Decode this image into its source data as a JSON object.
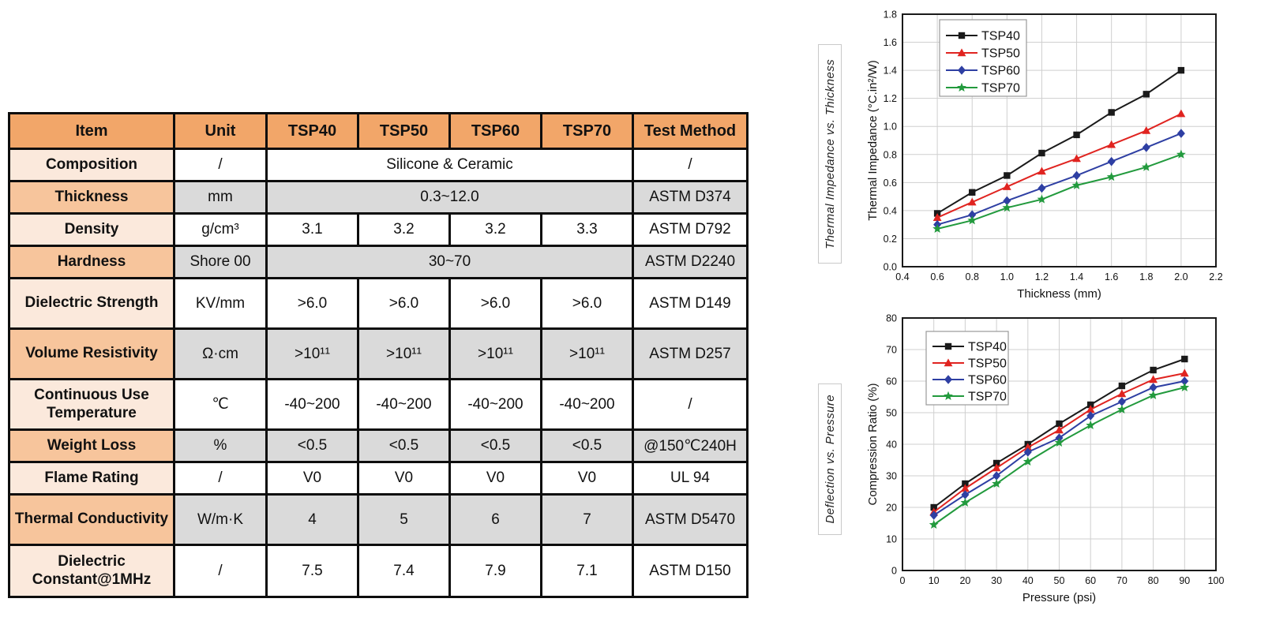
{
  "table": {
    "columns": [
      "Item",
      "Unit",
      "TSP40",
      "TSP50",
      "TSP60",
      "TSP70",
      "Test Method"
    ],
    "rows": [
      {
        "item": "Composition",
        "unit": "/",
        "span": 4,
        "values": [
          "Silicone & Ceramic"
        ],
        "test": "/",
        "shade": "white"
      },
      {
        "item": "Thickness",
        "unit": "mm",
        "span": 4,
        "values": [
          "0.3~12.0"
        ],
        "test": "ASTM D374",
        "shade": "gray"
      },
      {
        "item": "Density",
        "unit": "g/cm³",
        "span": 1,
        "values": [
          "3.1",
          "3.2",
          "3.2",
          "3.3"
        ],
        "test": "ASTM D792",
        "shade": "white"
      },
      {
        "item": "Hardness",
        "unit": "Shore 00",
        "span": 4,
        "values": [
          "30~70"
        ],
        "test": "ASTM D2240",
        "shade": "gray"
      },
      {
        "item": "Dielectric Strength",
        "unit": "KV/mm",
        "span": 1,
        "values": [
          ">6.0",
          ">6.0",
          ">6.0",
          ">6.0"
        ],
        "test": "ASTM D149",
        "shade": "white"
      },
      {
        "item": "Volume Resistivity",
        "unit": "Ω·cm",
        "span": 1,
        "values": [
          ">10¹¹",
          ">10¹¹",
          ">10¹¹",
          ">10¹¹"
        ],
        "test": "ASTM D257",
        "shade": "gray"
      },
      {
        "item": "Continuous Use Temperature",
        "unit": "℃",
        "span": 1,
        "values": [
          "-40~200",
          "-40~200",
          "-40~200",
          "-40~200"
        ],
        "test": "/",
        "shade": "white"
      },
      {
        "item": "Weight Loss",
        "unit": "%",
        "span": 1,
        "values": [
          "<0.5",
          "<0.5",
          "<0.5",
          "<0.5"
        ],
        "test": "@150℃240H",
        "shade": "gray"
      },
      {
        "item": "Flame Rating",
        "unit": "/",
        "span": 1,
        "values": [
          "V0",
          "V0",
          "V0",
          "V0"
        ],
        "test": "UL 94",
        "shade": "white"
      },
      {
        "item": "Thermal Conductivity",
        "unit": "W/m·K",
        "span": 1,
        "values": [
          "4",
          "5",
          "6",
          "7"
        ],
        "test": "ASTM D5470",
        "shade": "gray"
      },
      {
        "item": "Dielectric Constant@1MHz",
        "unit": "/",
        "span": 1,
        "values": [
          "7.5",
          "7.4",
          "7.9",
          "7.1"
        ],
        "test": "ASTM D150",
        "shade": "white"
      }
    ]
  },
  "colors": {
    "header_bg": "#f2a669",
    "item_light": "#fbe9dc",
    "item_medium": "#f7c59c",
    "cell_gray": "#dadada",
    "table_border": "#0d0d0d",
    "gridline": "#cfcfcf",
    "series_black": "#1a1a1a",
    "series_red": "#e02420",
    "series_blue": "#2e3fa3",
    "series_green": "#229a3d"
  },
  "chart_data": [
    {
      "type": "line",
      "side_label": "Thermal Impedance vs. Thickness",
      "xlabel": "Thickness (mm)",
      "ylabel": "Thermal Impedance (°C.in²/W)",
      "xlim": [
        0.4,
        2.2
      ],
      "ylim": [
        0.0,
        1.8
      ],
      "xticks": [
        "0.4",
        "0.6",
        "0.8",
        "1.0",
        "1.2",
        "1.4",
        "1.6",
        "1.8",
        "2.0",
        "2.2"
      ],
      "yticks": [
        "0.0",
        "0.2",
        "0.4",
        "0.6",
        "0.8",
        "1.0",
        "1.2",
        "1.4",
        "1.6",
        "1.8"
      ],
      "grid": true,
      "legend_position": "upper-left",
      "x": [
        0.6,
        0.8,
        1.0,
        1.2,
        1.4,
        1.6,
        1.8,
        2.0
      ],
      "series": [
        {
          "name": "TSP40",
          "color": "#1a1a1a",
          "marker": "square",
          "values": [
            0.38,
            0.53,
            0.65,
            0.81,
            0.94,
            1.1,
            1.23,
            1.4
          ]
        },
        {
          "name": "TSP50",
          "color": "#e02420",
          "marker": "triangle",
          "values": [
            0.35,
            0.46,
            0.57,
            0.68,
            0.77,
            0.87,
            0.97,
            1.09
          ]
        },
        {
          "name": "TSP60",
          "color": "#2e3fa3",
          "marker": "diamond",
          "values": [
            0.3,
            0.37,
            0.47,
            0.56,
            0.65,
            0.75,
            0.85,
            0.95
          ]
        },
        {
          "name": "TSP70",
          "color": "#229a3d",
          "marker": "star",
          "values": [
            0.27,
            0.33,
            0.42,
            0.48,
            0.58,
            0.64,
            0.71,
            0.8
          ]
        }
      ]
    },
    {
      "type": "line",
      "side_label": "Deflection vs. Pressure",
      "xlabel": "Pressure (psi)",
      "ylabel": "Compression Ratio (%)",
      "xlim": [
        0,
        100
      ],
      "ylim": [
        0,
        80
      ],
      "xticks": [
        "0",
        "10",
        "20",
        "30",
        "40",
        "50",
        "60",
        "70",
        "80",
        "90",
        "100"
      ],
      "yticks": [
        "0",
        "10",
        "20",
        "30",
        "40",
        "50",
        "60",
        "70",
        "80"
      ],
      "grid": true,
      "legend_position": "upper-left",
      "x": [
        10,
        20,
        30,
        40,
        50,
        60,
        70,
        80,
        90
      ],
      "series": [
        {
          "name": "TSP40",
          "color": "#1a1a1a",
          "marker": "square",
          "values": [
            20,
            27.5,
            34,
            40,
            46.5,
            52.5,
            58.5,
            63.5,
            67
          ]
        },
        {
          "name": "TSP50",
          "color": "#e02420",
          "marker": "triangle",
          "values": [
            18.5,
            26,
            32.5,
            39,
            44.5,
            51,
            56,
            60.5,
            62.5
          ]
        },
        {
          "name": "TSP60",
          "color": "#2e3fa3",
          "marker": "diamond",
          "values": [
            17.5,
            24,
            30,
            37.5,
            42,
            49,
            53.5,
            58,
            60
          ]
        },
        {
          "name": "TSP70",
          "color": "#229a3d",
          "marker": "star",
          "values": [
            14.5,
            21.5,
            27.5,
            34.5,
            40.5,
            46,
            51,
            55.5,
            58
          ]
        }
      ]
    }
  ]
}
